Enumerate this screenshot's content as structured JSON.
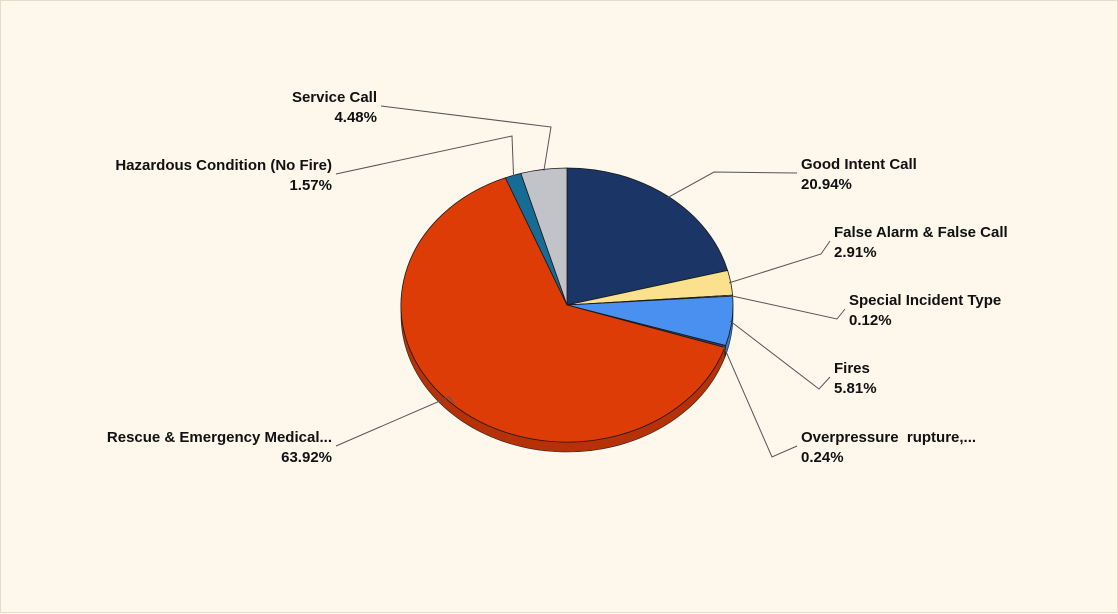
{
  "chart_data": {
    "type": "pie",
    "title": "",
    "slices": [
      {
        "label": "Good Intent Call",
        "pct_label": "20.94%",
        "value": 20.94,
        "color": "#1b3566"
      },
      {
        "label": "False Alarm & False Call",
        "pct_label": "2.91%",
        "value": 2.91,
        "color": "#fbe08e"
      },
      {
        "label": "Special Incident Type",
        "pct_label": "0.12%",
        "value": 0.12,
        "color": "#e8e8e8"
      },
      {
        "label": "Fires",
        "pct_label": "5.81%",
        "value": 5.81,
        "color": "#4a90f0"
      },
      {
        "label": "Overpressure  rupture,...",
        "pct_label": "0.24%",
        "value": 0.24,
        "color": "#2b3f6a"
      },
      {
        "label": "Rescue & Emergency Medical...",
        "pct_label": "63.92%",
        "value": 63.92,
        "color": "#de3c07"
      },
      {
        "label": "Hazardous Condition (No Fire)",
        "pct_label": "1.57%",
        "value": 1.57,
        "color": "#176c95"
      },
      {
        "label": "Service Call",
        "pct_label": "4.48%",
        "value": 4.48,
        "color": "#c2c3c8"
      }
    ]
  }
}
